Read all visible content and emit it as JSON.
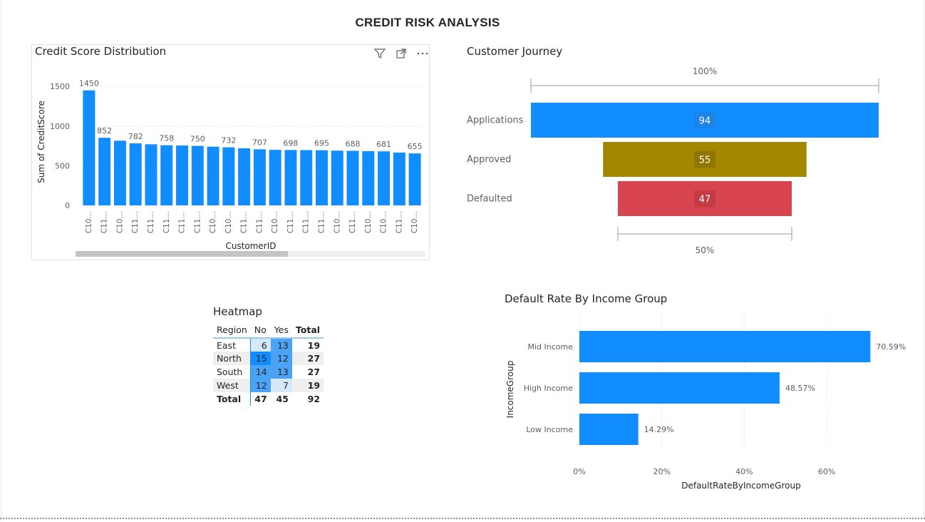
{
  "page": {
    "title": "CREDIT RISK ANALYSIS"
  },
  "colors": {
    "bar": "#118dff",
    "approved": "#a38700",
    "defaulted": "#d9454f",
    "heat_light": "#d6e9fb",
    "heat_mid": "#4aa3f5",
    "heat_dark": "#118dff"
  },
  "icons": [
    "filter-icon",
    "focus-mode-icon",
    "more-options-icon"
  ],
  "chart_data": [
    {
      "id": "credit_score",
      "type": "bar",
      "title": "Credit Score Distribution",
      "xlabel": "CustomerID",
      "ylabel": "Sum of CreditScore",
      "ylim": [
        0,
        1600
      ],
      "yticks": [
        "0",
        "500",
        "1000",
        "1500"
      ],
      "categories": [
        "C10…",
        "C11…",
        "C10…",
        "C11…",
        "C11…",
        "C11…",
        "C11…",
        "C11…",
        "C10…",
        "C10…",
        "C11…",
        "C11…",
        "C10…",
        "C11…",
        "C11…",
        "C11…",
        "C10…",
        "C11…",
        "C10…",
        "C10…",
        "C11…",
        "C10…"
      ],
      "values": [
        1450,
        852,
        815,
        782,
        770,
        758,
        755,
        750,
        740,
        732,
        720,
        707,
        700,
        698,
        697,
        695,
        690,
        688,
        684,
        681,
        665,
        655
      ],
      "data_labels": [
        "1450",
        "852",
        "",
        "782",
        "",
        "758",
        "",
        "750",
        "",
        "732",
        "",
        "707",
        "",
        "698",
        "",
        "695",
        "",
        "688",
        "",
        "681",
        "",
        "655"
      ],
      "grid": true
    },
    {
      "id": "customer_journey",
      "type": "funnel",
      "title": "Customer Journey",
      "top_label": "100%",
      "bottom_label": "50%",
      "categories": [
        "Applications",
        "Approved",
        "Defaulted"
      ],
      "values": [
        94,
        55,
        47
      ]
    },
    {
      "id": "heatmap",
      "type": "table",
      "title": "Heatmap",
      "columns": [
        "Region",
        "No",
        "Yes",
        "Total"
      ],
      "rows": [
        {
          "region": "East",
          "no": "6",
          "yes": "13",
          "total": "19"
        },
        {
          "region": "North",
          "no": "15",
          "yes": "12",
          "total": "27"
        },
        {
          "region": "South",
          "no": "14",
          "yes": "13",
          "total": "27"
        },
        {
          "region": "West",
          "no": "12",
          "yes": "7",
          "total": "19"
        }
      ],
      "totals": {
        "label": "Total",
        "no": "47",
        "yes": "45",
        "total": "92"
      }
    },
    {
      "id": "default_rate",
      "type": "bar",
      "orientation": "horizontal",
      "title": "Default Rate By Income Group",
      "xlabel": "DefaultRateByIncomeGroup",
      "ylabel": "IncomeGroup",
      "xlim": [
        0,
        0.75
      ],
      "xticks": [
        "0%",
        "20%",
        "40%",
        "60%"
      ],
      "categories": [
        "Mid Income",
        "High Income",
        "Low Income"
      ],
      "values": [
        0.7059,
        0.4857,
        0.1429
      ],
      "data_labels": [
        "70.59%",
        "48.57%",
        "14.29%"
      ],
      "grid": true
    }
  ]
}
